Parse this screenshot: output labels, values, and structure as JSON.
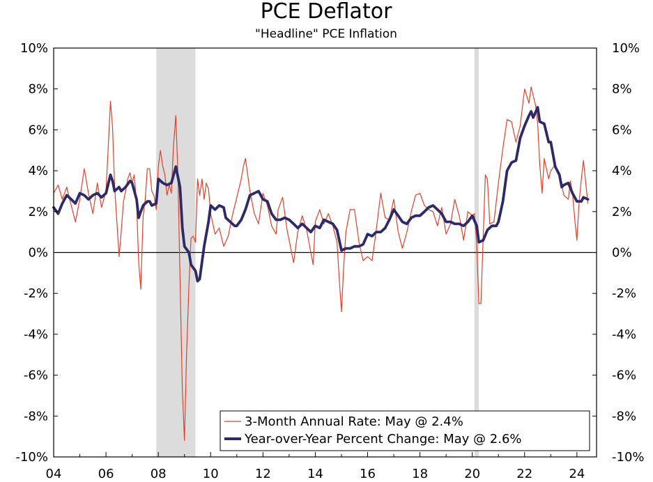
{
  "chart_data": {
    "type": "line",
    "title": "PCE Deflator",
    "subtitle": "\"Headline\" PCE Inflation",
    "xlabel": "",
    "ylabel": "",
    "xlim": [
      2004.0,
      2024.75
    ],
    "ylim": [
      -10,
      10
    ],
    "y_ticks": [
      10,
      8,
      6,
      4,
      2,
      0,
      -2,
      -4,
      -6,
      -8,
      -10
    ],
    "y_tick_labels": [
      "10%",
      "8%",
      "6%",
      "4%",
      "2%",
      "0%",
      "-2%",
      "-4%",
      "-6%",
      "-8%",
      "-10%"
    ],
    "x_ticks": [
      2004,
      2006,
      2008,
      2010,
      2012,
      2014,
      2016,
      2018,
      2020,
      2022,
      2024
    ],
    "x_tick_labels": [
      "04",
      "06",
      "08",
      "10",
      "12",
      "14",
      "16",
      "18",
      "20",
      "22",
      "24"
    ],
    "recessions": [
      [
        2007.92,
        2009.42
      ],
      [
        2020.08,
        2020.25
      ]
    ],
    "zero_line": true,
    "legend_position": "bottom-right",
    "series": [
      {
        "name": "3-Month Annual Rate: May @ 2.4%",
        "color": "#e0402a",
        "style": "thin",
        "points": [
          [
            2004.0,
            2.9
          ],
          [
            2004.17,
            3.3
          ],
          [
            2004.33,
            2.6
          ],
          [
            2004.5,
            3.2
          ],
          [
            2004.67,
            2.3
          ],
          [
            2004.83,
            1.5
          ],
          [
            2005.0,
            2.6
          ],
          [
            2005.17,
            4.1
          ],
          [
            2005.33,
            2.9
          ],
          [
            2005.5,
            1.9
          ],
          [
            2005.67,
            3.4
          ],
          [
            2005.83,
            2.2
          ],
          [
            2006.0,
            3.0
          ],
          [
            2006.08,
            5.0
          ],
          [
            2006.17,
            7.4
          ],
          [
            2006.25,
            6.1
          ],
          [
            2006.33,
            3.2
          ],
          [
            2006.42,
            1.4
          ],
          [
            2006.5,
            -0.2
          ],
          [
            2006.58,
            1.0
          ],
          [
            2006.67,
            2.5
          ],
          [
            2006.75,
            3.0
          ],
          [
            2006.83,
            3.6
          ],
          [
            2006.92,
            3.9
          ],
          [
            2007.0,
            3.4
          ],
          [
            2007.08,
            3.8
          ],
          [
            2007.17,
            2.4
          ],
          [
            2007.25,
            -0.5
          ],
          [
            2007.33,
            -1.8
          ],
          [
            2007.42,
            1.8
          ],
          [
            2007.5,
            2.6
          ],
          [
            2007.58,
            4.1
          ],
          [
            2007.67,
            4.1
          ],
          [
            2007.75,
            3.0
          ],
          [
            2007.83,
            2.8
          ],
          [
            2007.92,
            2.1
          ],
          [
            2008.0,
            4.2
          ],
          [
            2008.08,
            5.0
          ],
          [
            2008.17,
            4.2
          ],
          [
            2008.25,
            3.8
          ],
          [
            2008.33,
            2.8
          ],
          [
            2008.42,
            3.3
          ],
          [
            2008.5,
            2.9
          ],
          [
            2008.58,
            5.2
          ],
          [
            2008.67,
            6.7
          ],
          [
            2008.75,
            3.8
          ],
          [
            2008.83,
            -1.2
          ],
          [
            2008.92,
            -6.8
          ],
          [
            2009.0,
            -9.2
          ],
          [
            2009.08,
            -5.0
          ],
          [
            2009.17,
            -1.6
          ],
          [
            2009.25,
            0.7
          ],
          [
            2009.33,
            0.8
          ],
          [
            2009.42,
            0.5
          ],
          [
            2009.5,
            3.6
          ],
          [
            2009.58,
            2.8
          ],
          [
            2009.67,
            3.6
          ],
          [
            2009.75,
            2.6
          ],
          [
            2009.83,
            3.4
          ],
          [
            2009.92,
            3.1
          ],
          [
            2010.0,
            1.9
          ],
          [
            2010.17,
            0.9
          ],
          [
            2010.33,
            1.2
          ],
          [
            2010.5,
            0.3
          ],
          [
            2010.67,
            0.8
          ],
          [
            2010.83,
            1.8
          ],
          [
            2011.0,
            2.7
          ],
          [
            2011.17,
            3.6
          ],
          [
            2011.25,
            4.2
          ],
          [
            2011.33,
            4.6
          ],
          [
            2011.5,
            3.0
          ],
          [
            2011.67,
            1.9
          ],
          [
            2011.83,
            1.4
          ],
          [
            2012.0,
            2.9
          ],
          [
            2012.17,
            2.3
          ],
          [
            2012.33,
            1.3
          ],
          [
            2012.5,
            0.9
          ],
          [
            2012.58,
            2.1
          ],
          [
            2012.75,
            2.7
          ],
          [
            2012.92,
            1.1
          ],
          [
            2013.0,
            0.6
          ],
          [
            2013.17,
            -0.5
          ],
          [
            2013.33,
            1.0
          ],
          [
            2013.5,
            1.8
          ],
          [
            2013.67,
            1.1
          ],
          [
            2013.83,
            0.0
          ],
          [
            2013.92,
            -0.6
          ],
          [
            2014.0,
            1.5
          ],
          [
            2014.17,
            2.1
          ],
          [
            2014.33,
            1.4
          ],
          [
            2014.5,
            1.9
          ],
          [
            2014.67,
            1.3
          ],
          [
            2014.83,
            0.5
          ],
          [
            2014.92,
            -1.4
          ],
          [
            2015.0,
            -2.9
          ],
          [
            2015.08,
            -0.8
          ],
          [
            2015.17,
            1.0
          ],
          [
            2015.33,
            2.1
          ],
          [
            2015.5,
            2.1
          ],
          [
            2015.67,
            0.5
          ],
          [
            2015.83,
            -0.4
          ],
          [
            2016.0,
            -0.2
          ],
          [
            2016.17,
            -0.4
          ],
          [
            2016.33,
            1.1
          ],
          [
            2016.5,
            2.9
          ],
          [
            2016.67,
            1.7
          ],
          [
            2016.83,
            1.6
          ],
          [
            2017.0,
            2.6
          ],
          [
            2017.17,
            1.0
          ],
          [
            2017.33,
            0.2
          ],
          [
            2017.5,
            1.0
          ],
          [
            2017.67,
            2.0
          ],
          [
            2017.83,
            2.8
          ],
          [
            2018.0,
            2.9
          ],
          [
            2018.17,
            2.3
          ],
          [
            2018.33,
            2.1
          ],
          [
            2018.5,
            2.0
          ],
          [
            2018.67,
            1.3
          ],
          [
            2018.83,
            2.2
          ],
          [
            2019.0,
            0.9
          ],
          [
            2019.17,
            1.4
          ],
          [
            2019.33,
            2.6
          ],
          [
            2019.5,
            1.8
          ],
          [
            2019.67,
            0.6
          ],
          [
            2019.83,
            2.0
          ],
          [
            2020.0,
            1.8
          ],
          [
            2020.08,
            1.9
          ],
          [
            2020.17,
            0.4
          ],
          [
            2020.25,
            -2.5
          ],
          [
            2020.33,
            -2.5
          ],
          [
            2020.42,
            0.8
          ],
          [
            2020.5,
            3.8
          ],
          [
            2020.58,
            3.6
          ],
          [
            2020.67,
            1.4
          ],
          [
            2020.83,
            1.5
          ],
          [
            2021.0,
            3.4
          ],
          [
            2021.17,
            5.1
          ],
          [
            2021.33,
            6.5
          ],
          [
            2021.5,
            6.4
          ],
          [
            2021.67,
            5.4
          ],
          [
            2021.83,
            6.2
          ],
          [
            2022.0,
            8.0
          ],
          [
            2022.17,
            7.3
          ],
          [
            2022.25,
            8.1
          ],
          [
            2022.42,
            7.2
          ],
          [
            2022.5,
            6.3
          ],
          [
            2022.58,
            4.3
          ],
          [
            2022.67,
            2.9
          ],
          [
            2022.75,
            4.6
          ],
          [
            2022.92,
            3.6
          ],
          [
            2023.0,
            4.0
          ],
          [
            2023.17,
            4.3
          ],
          [
            2023.33,
            3.8
          ],
          [
            2023.5,
            2.8
          ],
          [
            2023.67,
            2.6
          ],
          [
            2023.75,
            3.5
          ],
          [
            2023.83,
            2.9
          ],
          [
            2023.92,
            1.6
          ],
          [
            2024.0,
            0.6
          ],
          [
            2024.08,
            2.4
          ],
          [
            2024.17,
            3.6
          ],
          [
            2024.25,
            4.5
          ],
          [
            2024.33,
            3.5
          ],
          [
            2024.42,
            2.4
          ]
        ]
      },
      {
        "name": "Year-over-Year Percent Change: May @ 2.6%",
        "color": "#2e2a68",
        "style": "thick",
        "points": [
          [
            2004.0,
            2.2
          ],
          [
            2004.17,
            1.9
          ],
          [
            2004.33,
            2.4
          ],
          [
            2004.5,
            2.8
          ],
          [
            2004.67,
            2.6
          ],
          [
            2004.83,
            2.4
          ],
          [
            2005.0,
            2.9
          ],
          [
            2005.17,
            2.8
          ],
          [
            2005.33,
            2.6
          ],
          [
            2005.5,
            2.8
          ],
          [
            2005.67,
            2.9
          ],
          [
            2005.83,
            2.7
          ],
          [
            2006.0,
            2.9
          ],
          [
            2006.17,
            3.8
          ],
          [
            2006.25,
            3.5
          ],
          [
            2006.33,
            3.0
          ],
          [
            2006.5,
            3.2
          ],
          [
            2006.58,
            3.0
          ],
          [
            2006.75,
            3.2
          ],
          [
            2006.92,
            3.5
          ],
          [
            2007.0,
            3.4
          ],
          [
            2007.17,
            2.6
          ],
          [
            2007.25,
            1.7
          ],
          [
            2007.33,
            2.0
          ],
          [
            2007.42,
            2.3
          ],
          [
            2007.58,
            2.5
          ],
          [
            2007.67,
            2.5
          ],
          [
            2007.75,
            2.3
          ],
          [
            2007.92,
            2.4
          ],
          [
            2008.0,
            3.6
          ],
          [
            2008.17,
            3.4
          ],
          [
            2008.33,
            3.3
          ],
          [
            2008.5,
            3.4
          ],
          [
            2008.67,
            4.2
          ],
          [
            2008.83,
            3.2
          ],
          [
            2008.92,
            1.2
          ],
          [
            2009.0,
            0.3
          ],
          [
            2009.17,
            0.0
          ],
          [
            2009.25,
            -0.6
          ],
          [
            2009.42,
            -0.9
          ],
          [
            2009.5,
            -1.4
          ],
          [
            2009.58,
            -1.3
          ],
          [
            2009.75,
            0.3
          ],
          [
            2009.92,
            1.5
          ],
          [
            2010.0,
            2.3
          ],
          [
            2010.17,
            2.1
          ],
          [
            2010.33,
            2.3
          ],
          [
            2010.5,
            2.2
          ],
          [
            2010.58,
            1.7
          ],
          [
            2010.75,
            1.5
          ],
          [
            2010.92,
            1.3
          ],
          [
            2011.0,
            1.3
          ],
          [
            2011.17,
            1.6
          ],
          [
            2011.33,
            2.1
          ],
          [
            2011.5,
            2.8
          ],
          [
            2011.67,
            2.9
          ],
          [
            2011.83,
            3.0
          ],
          [
            2012.0,
            2.6
          ],
          [
            2012.17,
            2.5
          ],
          [
            2012.33,
            1.9
          ],
          [
            2012.5,
            1.6
          ],
          [
            2012.67,
            1.6
          ],
          [
            2012.83,
            1.7
          ],
          [
            2013.0,
            1.6
          ],
          [
            2013.17,
            1.4
          ],
          [
            2013.33,
            1.2
          ],
          [
            2013.5,
            1.4
          ],
          [
            2013.67,
            1.2
          ],
          [
            2013.83,
            1.0
          ],
          [
            2014.0,
            1.3
          ],
          [
            2014.17,
            1.2
          ],
          [
            2014.33,
            1.6
          ],
          [
            2014.5,
            1.5
          ],
          [
            2014.67,
            1.4
          ],
          [
            2014.83,
            1.1
          ],
          [
            2015.0,
            0.1
          ],
          [
            2015.17,
            0.2
          ],
          [
            2015.33,
            0.2
          ],
          [
            2015.5,
            0.3
          ],
          [
            2015.67,
            0.3
          ],
          [
            2015.83,
            0.4
          ],
          [
            2016.0,
            0.9
          ],
          [
            2016.17,
            0.8
          ],
          [
            2016.33,
            1.0
          ],
          [
            2016.5,
            1.0
          ],
          [
            2016.67,
            1.2
          ],
          [
            2016.83,
            1.6
          ],
          [
            2017.0,
            2.1
          ],
          [
            2017.17,
            1.8
          ],
          [
            2017.33,
            1.5
          ],
          [
            2017.5,
            1.4
          ],
          [
            2017.67,
            1.7
          ],
          [
            2017.83,
            1.8
          ],
          [
            2018.0,
            1.8
          ],
          [
            2018.17,
            2.0
          ],
          [
            2018.33,
            2.2
          ],
          [
            2018.5,
            2.3
          ],
          [
            2018.67,
            2.1
          ],
          [
            2018.83,
            1.9
          ],
          [
            2019.0,
            1.5
          ],
          [
            2019.17,
            1.5
          ],
          [
            2019.33,
            1.4
          ],
          [
            2019.5,
            1.4
          ],
          [
            2019.67,
            1.3
          ],
          [
            2019.83,
            1.5
          ],
          [
            2020.0,
            1.8
          ],
          [
            2020.17,
            1.3
          ],
          [
            2020.25,
            0.5
          ],
          [
            2020.42,
            0.6
          ],
          [
            2020.58,
            1.1
          ],
          [
            2020.75,
            1.3
          ],
          [
            2020.92,
            1.3
          ],
          [
            2021.0,
            1.5
          ],
          [
            2021.17,
            2.5
          ],
          [
            2021.33,
            4.0
          ],
          [
            2021.5,
            4.4
          ],
          [
            2021.67,
            4.5
          ],
          [
            2021.83,
            5.6
          ],
          [
            2022.0,
            6.2
          ],
          [
            2022.17,
            6.7
          ],
          [
            2022.25,
            6.9
          ],
          [
            2022.33,
            6.6
          ],
          [
            2022.5,
            7.1
          ],
          [
            2022.58,
            6.4
          ],
          [
            2022.75,
            6.3
          ],
          [
            2022.92,
            5.4
          ],
          [
            2023.0,
            5.4
          ],
          [
            2023.17,
            4.2
          ],
          [
            2023.33,
            3.8
          ],
          [
            2023.42,
            3.2
          ],
          [
            2023.5,
            3.3
          ],
          [
            2023.67,
            3.4
          ],
          [
            2023.83,
            2.9
          ],
          [
            2024.0,
            2.5
          ],
          [
            2024.17,
            2.5
          ],
          [
            2024.25,
            2.7
          ],
          [
            2024.42,
            2.6
          ]
        ]
      }
    ]
  }
}
